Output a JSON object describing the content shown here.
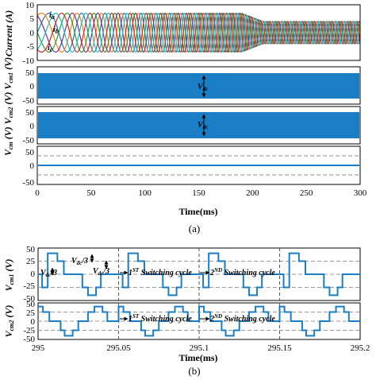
{
  "caption_a": "(a)",
  "caption_b": "(b)",
  "chart_data": [
    {
      "type": "line",
      "panel": "a-1",
      "ylabel": "Current (A)",
      "xlim": [
        0,
        300
      ],
      "ylim": [
        -10,
        10
      ],
      "yticks": [
        -10,
        -5,
        0,
        5,
        10
      ],
      "series": [
        {
          "name": "i_a",
          "color": "#1f77b4"
        },
        {
          "name": "i_b",
          "color": "#ff7f0e"
        },
        {
          "name": "i_c",
          "color": "#7b2d8e"
        },
        {
          "name": "",
          "color": "#2ca02c"
        },
        {
          "name": "",
          "color": "#d62728"
        },
        {
          "name": "",
          "color": "#17becf"
        }
      ],
      "amplitude_start": 7,
      "amplitude_end": 4,
      "freq_start_hz": 20,
      "freq_end_hz": 120,
      "series_labels": [
        "i_a",
        "i_b",
        "i_c"
      ]
    },
    {
      "type": "area",
      "panel": "a-2",
      "ylabel": "V_cm1 (V)",
      "xlim": [
        0,
        300
      ],
      "ylim": [
        -50,
        50
      ],
      "yticks": [
        -50,
        0,
        50
      ],
      "band": [
        -40,
        40
      ],
      "color": "#1a7ec4",
      "annotation": "V_dc"
    },
    {
      "type": "area",
      "panel": "a-3",
      "ylabel": "V_cm2 (V)",
      "xlim": [
        0,
        300
      ],
      "ylim": [
        -50,
        50
      ],
      "yticks": [
        -50,
        0,
        50
      ],
      "band": [
        -40,
        40
      ],
      "color": "#1a7ec4",
      "annotation": "V_dc"
    },
    {
      "type": "line",
      "panel": "a-4",
      "ylabel": "V_cm (V)",
      "xlabel": "Time(ms)",
      "xlim": [
        0,
        300
      ],
      "xticks": [
        0,
        50,
        100,
        150,
        200,
        250,
        300
      ],
      "ylim": [
        -50,
        50
      ],
      "yticks": [
        -50,
        0,
        50
      ],
      "value": 0,
      "dashed_levels": [
        -25,
        25
      ],
      "color": "#1a7ec4"
    },
    {
      "type": "line",
      "panel": "b-1",
      "ylabel": "V_cm1 (V)",
      "xlim": [
        295,
        295.2
      ],
      "ylim": [
        -50,
        50
      ],
      "yticks": [
        -50,
        -25,
        0,
        25,
        50
      ],
      "dashed_levels": [
        -25,
        0,
        25
      ],
      "cycle_markers": [
        295.05,
        295.1,
        295.15
      ],
      "x": [
        295,
        295.00167,
        295.00333,
        295.0134,
        295.015,
        295.02333,
        295.025,
        295.0317,
        295.0333,
        295.0383,
        295.04,
        295.05
      ],
      "y": [
        0,
        -25,
        -40,
        40,
        40,
        25,
        0,
        -25,
        -40,
        -25,
        0,
        0
      ],
      "period_ms": 0.05,
      "annotations": [
        "V_dc/3",
        "V_dc/3",
        "V_dc/3",
        "1^ST Switching cycle",
        "2^ND Switching cycle"
      ],
      "color": "#1a7ec4"
    },
    {
      "type": "line",
      "panel": "b-2",
      "ylabel": "V_cm2 (V)",
      "xlabel": "Time(ms)",
      "xlim": [
        295,
        295.2
      ],
      "xticks": [
        295,
        295.05,
        295.1,
        295.15,
        295.2
      ],
      "xticklabels": [
        "295",
        "295.05",
        "295.1",
        "295.15",
        "295.2"
      ],
      "ylim": [
        -50,
        50
      ],
      "yticks": [
        -50,
        -25,
        0,
        25,
        50
      ],
      "dashed_levels": [
        -25,
        0,
        25
      ],
      "cycle_markers": [
        295.05,
        295.1,
        295.15
      ],
      "period_ms": 0.05,
      "annotations": [
        "1^ST Switching cycle",
        "2^ND Switching cycle"
      ],
      "color": "#1a7ec4"
    }
  ]
}
